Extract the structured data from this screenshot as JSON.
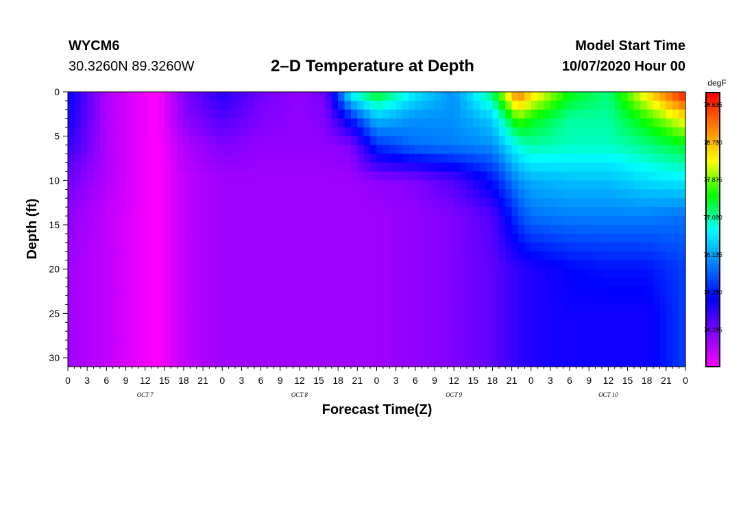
{
  "header": {
    "station_id": "WYCM6",
    "coords": "30.3260N 89.3260W",
    "title": "2–D Temperature at Depth",
    "model_start_label": "Model Start Time",
    "model_start_value": "10/07/2020 Hour 00"
  },
  "chart_data": {
    "type": "heatmap",
    "title": "2–D Temperature at Depth",
    "xlabel": "Forecast Time(Z)",
    "ylabel": "Depth (ft)",
    "x_tick_labels": [
      "0",
      "3",
      "6",
      "9",
      "12",
      "15",
      "18",
      "21",
      "0",
      "3",
      "6",
      "9",
      "12",
      "15",
      "18",
      "21",
      "0",
      "3",
      "6",
      "9",
      "12",
      "15",
      "18",
      "21",
      "0",
      "3",
      "6",
      "9",
      "12",
      "15",
      "18",
      "21",
      "0"
    ],
    "x_range_hours": [
      0,
      96
    ],
    "date_labels": [
      {
        "label": "OCT 7",
        "hour": 12
      },
      {
        "label": "OCT 8",
        "hour": 36
      },
      {
        "label": "OCT 9",
        "hour": 60
      },
      {
        "label": "OCT 10",
        "hour": 84
      }
    ],
    "y_range_ft": [
      0,
      31
    ],
    "y_ticks": [
      0,
      5,
      10,
      15,
      20,
      25,
      30
    ],
    "colorbar": {
      "unit": "degF",
      "range": [
        73.5,
        79.9
      ],
      "ticks": [
        "79.625",
        "78.750",
        "77.875",
        "77.000",
        "76.125",
        "75.250",
        "74.375"
      ]
    },
    "colors": [
      "#ff00ff",
      "#8000ff",
      "#0000ff",
      "#0080ff",
      "#00ffff",
      "#00ff00",
      "#ffff00",
      "#ff8000",
      "#ff0000"
    ],
    "depth_levels_ft": [
      0,
      3,
      6,
      10,
      14,
      20,
      25,
      31
    ],
    "times_hours": [
      0,
      6,
      12,
      14,
      18,
      24,
      30,
      36,
      40,
      44,
      48,
      54,
      60,
      66,
      70,
      72,
      78,
      84,
      90,
      96
    ],
    "temperature_degF": [
      [
        75.1,
        74.0,
        73.6,
        73.5,
        74.3,
        74.9,
        74.4,
        74.2,
        74.4,
        76.8,
        77.5,
        76.6,
        76.0,
        77.2,
        79.3,
        78.6,
        77.5,
        77.1,
        78.5,
        79.9
      ],
      [
        75.0,
        74.0,
        73.6,
        73.5,
        74.2,
        74.6,
        74.3,
        74.2,
        74.3,
        75.3,
        76.3,
        76.0,
        76.0,
        76.4,
        77.8,
        77.5,
        77.0,
        77.0,
        77.6,
        78.4
      ],
      [
        74.8,
        74.0,
        73.6,
        73.5,
        74.0,
        74.3,
        74.2,
        74.2,
        74.2,
        74.3,
        75.4,
        75.8,
        75.9,
        76.0,
        76.8,
        77.0,
        76.9,
        76.9,
        77.1,
        77.4
      ],
      [
        74.4,
        74.0,
        73.6,
        73.5,
        73.9,
        74.1,
        74.1,
        74.1,
        74.1,
        74.1,
        74.2,
        74.3,
        74.6,
        75.2,
        76.0,
        76.2,
        76.3,
        76.3,
        76.5,
        76.6
      ],
      [
        74.2,
        73.9,
        73.6,
        73.5,
        73.9,
        74.1,
        74.1,
        74.1,
        74.1,
        74.1,
        74.1,
        74.2,
        74.3,
        74.6,
        75.5,
        75.8,
        75.9,
        75.9,
        75.9,
        75.8
      ],
      [
        74.1,
        73.9,
        73.6,
        73.5,
        73.9,
        74.1,
        74.1,
        74.1,
        74.1,
        74.1,
        74.1,
        74.2,
        74.3,
        74.5,
        74.8,
        74.9,
        75.1,
        75.2,
        75.2,
        75.5
      ],
      [
        74.1,
        73.9,
        73.6,
        73.5,
        73.9,
        74.1,
        74.1,
        74.1,
        74.1,
        74.1,
        74.1,
        74.2,
        74.3,
        74.5,
        74.8,
        74.9,
        75.0,
        75.0,
        75.0,
        75.5
      ],
      [
        74.1,
        73.9,
        73.6,
        73.5,
        73.9,
        74.1,
        74.1,
        74.1,
        74.1,
        74.1,
        74.1,
        74.2,
        74.3,
        74.5,
        74.8,
        74.9,
        75.0,
        75.0,
        75.0,
        75.5
      ]
    ]
  }
}
